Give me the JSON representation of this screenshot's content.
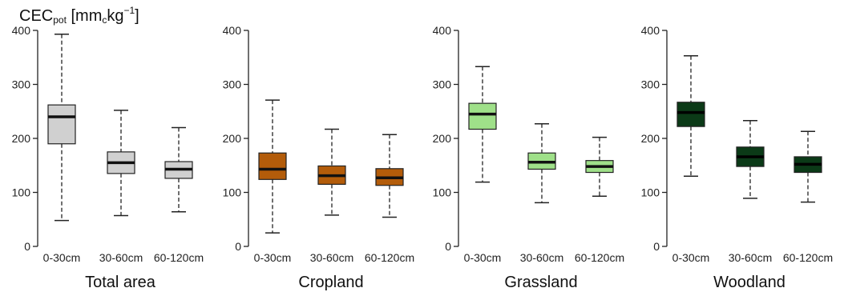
{
  "figure": {
    "ylabel": {
      "main": "CEC",
      "sub": "pot",
      "unit_open": " [mm",
      "unit_sub": "c",
      "unit_mid": "kg",
      "unit_sup": "−1",
      "unit_close": "]"
    }
  },
  "chart_data": [
    {
      "type": "box",
      "title": "Total area",
      "categories": [
        "0-30cm",
        "30-60cm",
        "60-120cm"
      ],
      "ylim": [
        0,
        400
      ],
      "yticks": [
        0,
        100,
        200,
        300,
        400
      ],
      "color": "#d0d0d0",
      "median_color": "#111111",
      "boxes": [
        {
          "min": 48,
          "q1": 190,
          "median": 240,
          "q3": 262,
          "max": 393
        },
        {
          "min": 57,
          "q1": 135,
          "median": 155,
          "q3": 175,
          "max": 252
        },
        {
          "min": 64,
          "q1": 126,
          "median": 143,
          "q3": 157,
          "max": 220
        }
      ]
    },
    {
      "type": "box",
      "title": "Cropland",
      "categories": [
        "0-30cm",
        "30-60cm",
        "60-120cm"
      ],
      "ylim": [
        0,
        400
      ],
      "yticks": [
        0,
        100,
        200,
        300,
        400
      ],
      "color": "#b35c0a",
      "median_color": "#111111",
      "boxes": [
        {
          "min": 25,
          "q1": 124,
          "median": 143,
          "q3": 173,
          "max": 271
        },
        {
          "min": 58,
          "q1": 115,
          "median": 131,
          "q3": 149,
          "max": 217
        },
        {
          "min": 54,
          "q1": 113,
          "median": 127,
          "q3": 144,
          "max": 207
        }
      ]
    },
    {
      "type": "box",
      "title": "Grassland",
      "categories": [
        "0-30cm",
        "30-60cm",
        "60-120cm"
      ],
      "ylim": [
        0,
        400
      ],
      "yticks": [
        0,
        100,
        200,
        300,
        400
      ],
      "color": "#9fe089",
      "median_color": "#111111",
      "boxes": [
        {
          "min": 119,
          "q1": 217,
          "median": 245,
          "q3": 265,
          "max": 333
        },
        {
          "min": 81,
          "q1": 143,
          "median": 156,
          "q3": 173,
          "max": 227
        },
        {
          "min": 93,
          "q1": 137,
          "median": 148,
          "q3": 159,
          "max": 202
        }
      ]
    },
    {
      "type": "box",
      "title": "Woodland",
      "categories": [
        "0-30cm",
        "30-60cm",
        "60-120cm"
      ],
      "ylim": [
        0,
        400
      ],
      "yticks": [
        0,
        100,
        200,
        300,
        400
      ],
      "color": "#0b3a17",
      "median_color": "#000000",
      "boxes": [
        {
          "min": 130,
          "q1": 222,
          "median": 248,
          "q3": 267,
          "max": 353
        },
        {
          "min": 89,
          "q1": 148,
          "median": 166,
          "q3": 184,
          "max": 233
        },
        {
          "min": 82,
          "q1": 137,
          "median": 152,
          "q3": 166,
          "max": 213
        }
      ]
    }
  ]
}
